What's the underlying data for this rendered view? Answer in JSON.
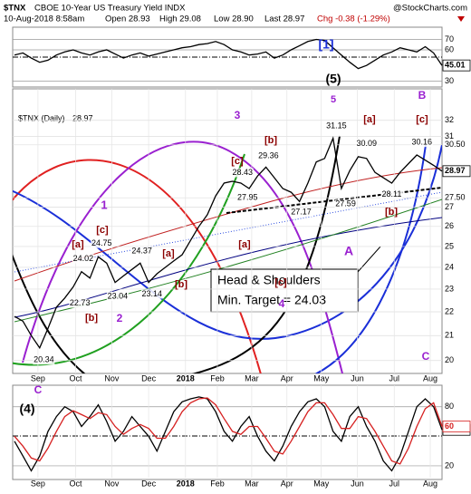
{
  "header": {
    "symbol": "$TNX",
    "name": "CBOE 10-Year US Treasury Yield INDX",
    "source": "@StockCharts.com",
    "timestamp": "10-Aug-2018 8:58am",
    "open": "Open 28.93",
    "high": "High 29.08",
    "low": "Low 28.90",
    "last": "Last 28.97",
    "change": "Chg -0.38 (-1.29%)"
  },
  "chart_data": [
    {
      "type": "line",
      "xlim": [
        0,
        51
      ],
      "ylim": [
        26,
        80
      ],
      "yticks": [
        30,
        60,
        70
      ],
      "grid": true,
      "series": [
        {
          "color": "#000000",
          "values": [
            55,
            57,
            52,
            48,
            50,
            55,
            58,
            60,
            57,
            55,
            58,
            60,
            56,
            52,
            55,
            57,
            54,
            56,
            58,
            60,
            62,
            63,
            65,
            66,
            68,
            65,
            60,
            58,
            55,
            56,
            58,
            52,
            55,
            60,
            64,
            68,
            70,
            69,
            62,
            55,
            48,
            42,
            45,
            50,
            55,
            58,
            62,
            60,
            58,
            63,
            57,
            45.01
          ]
        }
      ],
      "annotations": [
        "[1]",
        "(5)",
        "5",
        "B"
      ]
    },
    {
      "type": "line",
      "title": "$TNX (Daily)",
      "log": true,
      "xlim": [
        0,
        51
      ],
      "ylim": [
        19.5,
        32.5
      ],
      "yticks": [
        20,
        21,
        22,
        23,
        24,
        25,
        26,
        27,
        {
          "value": 27.5,
          "label": "27.50"
        },
        {
          "value": 30.5,
          "label": "30.50"
        },
        31,
        32
      ],
      "xticks": [
        {
          "value": 2.8,
          "label": "Sep"
        },
        {
          "value": 7.3,
          "label": "Oct"
        },
        {
          "value": 11.6,
          "label": "Nov"
        },
        {
          "value": 16,
          "label": "Dec"
        },
        {
          "value": 20.4,
          "label": "2018"
        },
        {
          "value": 24.2,
          "label": "Feb"
        },
        {
          "value": 28.3,
          "label": "Mar"
        },
        {
          "value": 32.5,
          "label": "Apr"
        },
        {
          "value": 36.6,
          "label": "May"
        },
        {
          "value": 40.9,
          "label": "Jun"
        },
        {
          "value": 45.3,
          "label": "Jul"
        },
        {
          "value": 49.6,
          "label": "Aug"
        }
      ],
      "series": [
        {
          "color": "#000000",
          "values": [
            21.8,
            21.6,
            21.0,
            20.5,
            21.3,
            22.2,
            22.6,
            23.1,
            23.8,
            23.5,
            24.5,
            24.2,
            23.3,
            23.6,
            23.9,
            24.2,
            23.3,
            23.7,
            24.0,
            24.3,
            24.6,
            25.3,
            26.0,
            26.6,
            27.6,
            28.3,
            28.4,
            28.3,
            28.0,
            28.7,
            29.2,
            28.6,
            28.0,
            27.8,
            27.3,
            28.3,
            29.5,
            29.7,
            30.9,
            28.0,
            29.0,
            29.8,
            29.7,
            28.9,
            28.6,
            28.3,
            28.9,
            29.4,
            29.9,
            29.6,
            29.3,
            28.97
          ]
        }
      ],
      "pivots": {
        "x": [
          3.5,
          7.8,
          8.2,
          10.4,
          12.3,
          15.2,
          16.4,
          27.2,
          27.8,
          30.3,
          34.2,
          38.4,
          39.5,
          42.0,
          45.0,
          48.6
        ],
        "values": [
          20.34,
          22.73,
          24.02,
          24.75,
          23.04,
          24.37,
          23.14,
          28.43,
          27.95,
          29.36,
          27.17,
          31.15,
          27.59,
          30.09,
          28.11,
          30.16
        ]
      },
      "annotations": [
        "[a]",
        "[c]",
        "[b]",
        "1",
        "2",
        "[a]",
        "[b]",
        "3",
        "[c]",
        "[b]",
        "[a]",
        "[c]",
        "4",
        "A",
        "[a]",
        "[b]",
        "[c]",
        "C"
      ],
      "callout": [
        "Head & Shoulders",
        "Min. Target = 24.03"
      ]
    },
    {
      "type": "line",
      "xlim": [
        0,
        51
      ],
      "ylim": [
        8,
        100
      ],
      "yticks": [
        20,
        80
      ],
      "grid": true,
      "xticks": [
        {
          "value": 2.8,
          "label": "Sep"
        },
        {
          "value": 7.3,
          "label": "Oct"
        },
        {
          "value": 11.6,
          "label": "Nov"
        },
        {
          "value": 16,
          "label": "Dec"
        },
        {
          "value": 20.4,
          "label": "2018"
        },
        {
          "value": 24.2,
          "label": "Feb"
        },
        {
          "value": 28.3,
          "label": "Mar"
        },
        {
          "value": 32.5,
          "label": "Apr"
        },
        {
          "value": 36.6,
          "label": "May"
        },
        {
          "value": 40.9,
          "label": "Jun"
        },
        {
          "value": 45.3,
          "label": "Jul"
        },
        {
          "value": 49.6,
          "label": "Aug"
        }
      ],
      "series": [
        {
          "color": "#000000",
          "values": [
            45,
            30,
            15,
            30,
            55,
            70,
            80,
            75,
            60,
            70,
            82,
            65,
            45,
            55,
            70,
            60,
            50,
            35,
            55,
            75,
            85,
            88,
            90,
            88,
            75,
            55,
            45,
            60,
            70,
            50,
            35,
            25,
            40,
            60,
            75,
            85,
            88,
            80,
            55,
            45,
            70,
            80,
            60,
            45,
            25,
            15,
            30,
            55,
            80,
            88,
            80,
            56.56
          ]
        },
        {
          "color": "#d62020",
          "values": [
            50,
            40,
            28,
            25,
            38,
            55,
            70,
            76,
            72,
            68,
            74,
            72,
            60,
            52,
            58,
            62,
            58,
            48,
            48,
            60,
            75,
            84,
            88,
            89,
            82,
            68,
            55,
            52,
            60,
            60,
            48,
            35,
            32,
            45,
            60,
            75,
            84,
            84,
            72,
            58,
            58,
            70,
            68,
            55,
            40,
            25,
            22,
            38,
            60,
            78,
            84,
            60
          ]
        }
      ],
      "annotations": [
        "C",
        "(4)"
      ]
    }
  ]
}
